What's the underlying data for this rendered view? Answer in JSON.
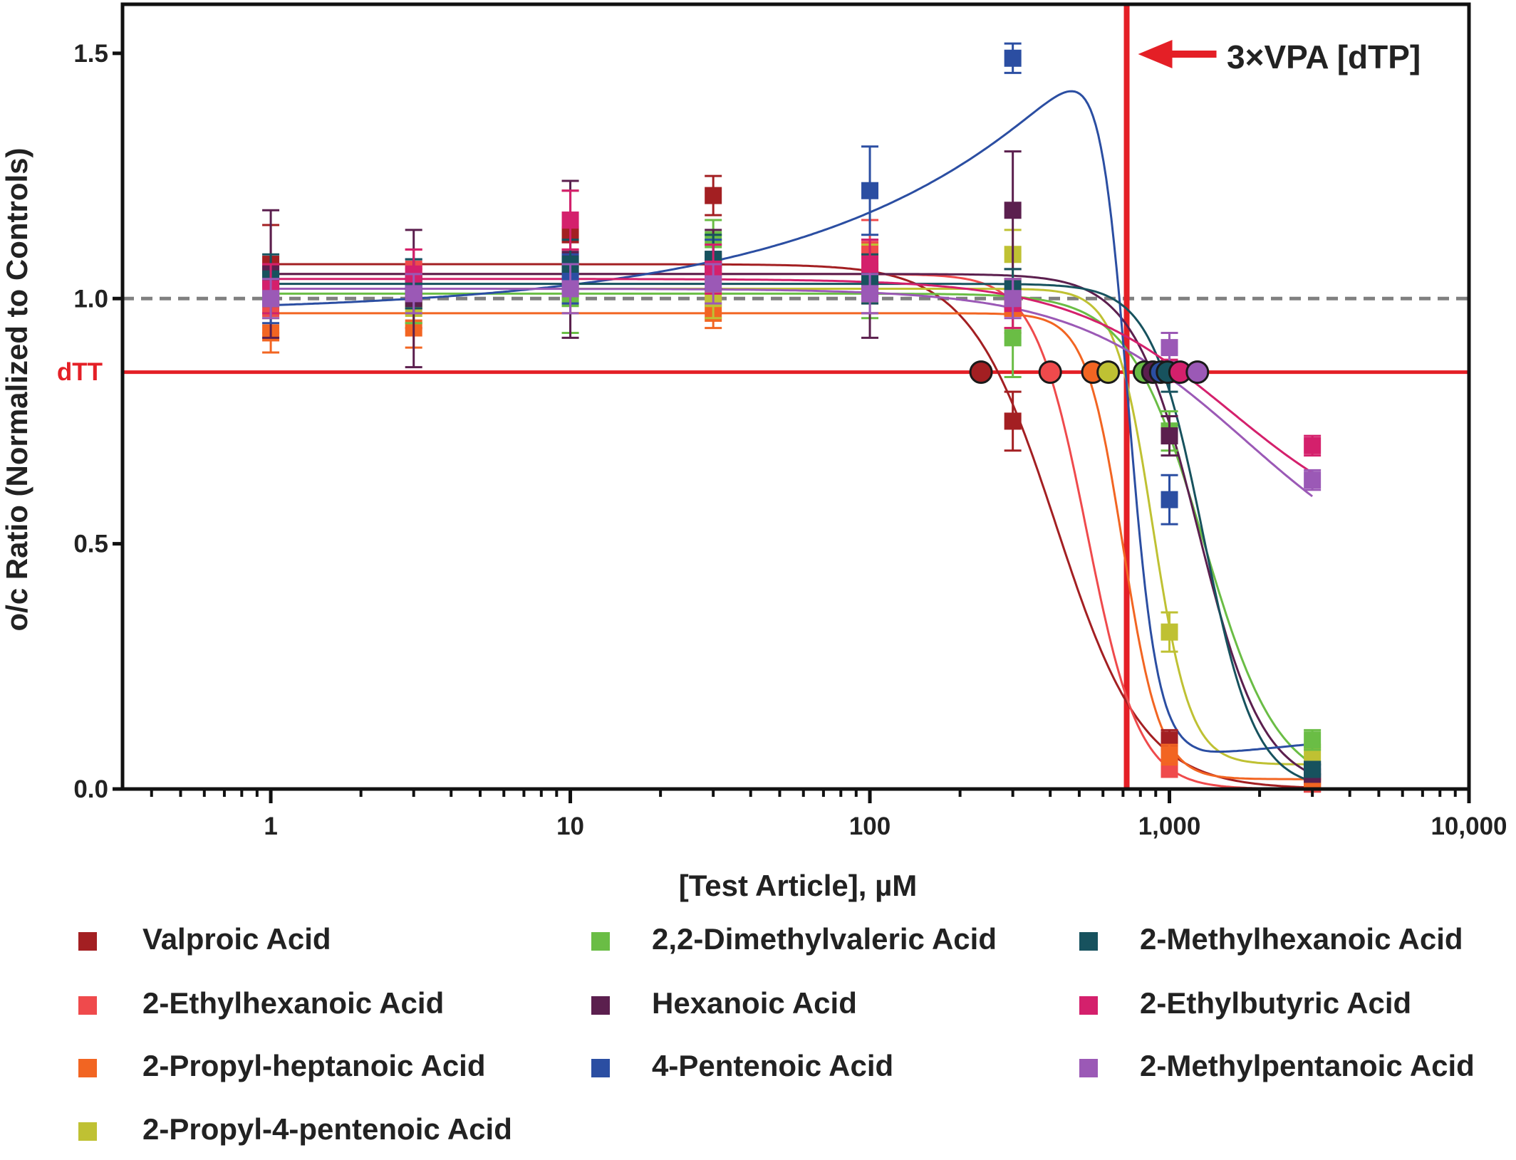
{
  "chart_data": {
    "type": "scatter",
    "title": "",
    "xlabel": "[Test Article], µM",
    "ylabel": "o/c Ratio (Normalized to Controls)",
    "x_scale": "log",
    "xlim": [
      0.32,
      10000
    ],
    "ylim": [
      0,
      1.6
    ],
    "x_tick_labels": [
      "1",
      "10",
      "100",
      "1,000",
      "10,000"
    ],
    "y_tick_labels": [
      "0.0",
      "0.5",
      "1.0",
      "1.5"
    ],
    "reference_lines": {
      "control_level": 1.0,
      "dTT_label": "dTT",
      "dTT_value": 0.85,
      "vpa_label": "3×VPA [dTP]",
      "vpa_concentration": 720
    },
    "legend_position": "bottom",
    "series": [
      {
        "name": "Valproic Acid",
        "color": "#a31f22",
        "x": [
          1,
          3,
          10,
          30,
          100,
          300,
          1000,
          3000
        ],
        "y": [
          1.07,
          1.0,
          1.13,
          1.21,
          1.02,
          0.75,
          0.1,
          0.01
        ],
        "err": [
          0.08,
          0.06,
          0.09,
          0.04,
          0.05,
          0.06,
          0.02,
          0.01
        ],
        "fit": {
          "top": 1.07,
          "bottom": 0.0,
          "ec50": 420,
          "hill": 3.0
        },
        "dtt_crossing": 235
      },
      {
        "name": "2-Ethylhexanoic Acid",
        "color": "#ef4a4c",
        "x": [
          1,
          3,
          10,
          30,
          100,
          300,
          1000,
          3000
        ],
        "y": [
          0.98,
          1.06,
          1.05,
          1.05,
          1.1,
          0.98,
          0.04,
          0.01
        ],
        "err": [
          0.05,
          0.04,
          0.05,
          0.04,
          0.06,
          0.05,
          0.01,
          0.01
        ],
        "fit": {
          "top": 1.05,
          "bottom": 0.0,
          "ec50": 530,
          "hill": 5.0
        },
        "dtt_crossing": 400
      },
      {
        "name": "2-Propyl-heptanoic Acid",
        "color": "#f26522",
        "x": [
          1,
          3,
          10,
          30,
          100,
          300,
          1000,
          3000
        ],
        "y": [
          0.93,
          0.94,
          1.02,
          0.97,
          1.05,
          0.98,
          0.07,
          0.02
        ],
        "err": [
          0.04,
          0.04,
          0.05,
          0.03,
          0.06,
          0.04,
          0.02,
          0.01
        ],
        "fit": {
          "top": 0.97,
          "bottom": 0.02,
          "ec50": 700,
          "hill": 7.0
        },
        "dtt_crossing": 555
      },
      {
        "name": "2-Propyl-4-pentenoic Acid",
        "color": "#bfc133",
        "x": [
          1,
          3,
          10,
          30,
          100,
          300,
          1000,
          3000
        ],
        "y": [
          1.0,
          0.98,
          1.02,
          1.0,
          1.06,
          1.09,
          0.32,
          0.07
        ],
        "err": [
          0.04,
          0.03,
          0.05,
          0.04,
          0.05,
          0.05,
          0.04,
          0.02
        ],
        "fit": {
          "top": 1.02,
          "bottom": 0.05,
          "ec50": 880,
          "hill": 7.0
        },
        "dtt_crossing": 625
      },
      {
        "name": "2,2-Dimethylvaleric Acid",
        "color": "#6abd45",
        "x": [
          1,
          3,
          10,
          30,
          100,
          300,
          1000,
          3000
        ],
        "y": [
          1.01,
          1.0,
          1.0,
          1.12,
          1.01,
          0.92,
          0.73,
          0.1
        ],
        "err": [
          0.04,
          0.05,
          0.07,
          0.04,
          0.05,
          0.08,
          0.04,
          0.02
        ],
        "fit": {
          "top": 1.01,
          "bottom": 0.0,
          "ec50": 1300,
          "hill": 3.5
        },
        "dtt_crossing": 825
      },
      {
        "name": "Hexanoic Acid",
        "color": "#5b1f4e",
        "x": [
          1,
          3,
          10,
          30,
          100,
          300,
          1000,
          3000
        ],
        "y": [
          1.05,
          1.0,
          1.08,
          1.08,
          1.02,
          1.18,
          0.72,
          0.03
        ],
        "err": [
          0.13,
          0.14,
          0.16,
          0.06,
          0.1,
          0.12,
          0.04,
          0.01
        ],
        "fit": {
          "top": 1.05,
          "bottom": 0.0,
          "ec50": 1250,
          "hill": 4.0
        },
        "dtt_crossing": 880
      },
      {
        "name": "4-Pentenoic Acid",
        "color": "#2b4ea2",
        "x": [
          1,
          3,
          10,
          30,
          100,
          300,
          1000,
          3000
        ],
        "y": [
          1.0,
          1.03,
          1.04,
          1.07,
          1.22,
          1.49,
          0.59,
          0.04
        ],
        "err": [
          0.05,
          0.05,
          0.05,
          0.05,
          0.09,
          0.03,
          0.05,
          0.01
        ],
        "fit": {
          "type": "biphasic"
        },
        "dtt_crossing": 935
      },
      {
        "name": "2-Methylhexanoic Acid",
        "color": "#17525e",
        "x": [
          1,
          3,
          10,
          30,
          100,
          300,
          1000,
          3000
        ],
        "y": [
          1.04,
          1.03,
          1.07,
          1.08,
          1.04,
          1.02,
          0.85,
          0.04
        ],
        "err": [
          0.05,
          0.05,
          0.05,
          0.05,
          0.05,
          0.04,
          0.04,
          0.01
        ],
        "fit": {
          "top": 1.03,
          "bottom": 0.0,
          "ec50": 1300,
          "hill": 5.0
        },
        "dtt_crossing": 985
      },
      {
        "name": "2-Ethylbutyric Acid",
        "color": "#d4206c",
        "x": [
          1,
          3,
          10,
          30,
          100,
          300,
          1000,
          3000
        ],
        "y": [
          1.02,
          1.05,
          1.16,
          1.06,
          1.07,
          0.99,
          0.86,
          0.7
        ],
        "err": [
          0.05,
          0.05,
          0.06,
          0.05,
          0.05,
          0.05,
          0.03,
          0.02
        ],
        "fit": {
          "top": 1.04,
          "bottom": 0.5,
          "ec50": 1600,
          "hill": 1.6
        },
        "dtt_crossing": 1085
      },
      {
        "name": "2-Methylpentanoic Acid",
        "color": "#9b59b6",
        "x": [
          1,
          3,
          10,
          30,
          100,
          300,
          1000,
          3000
        ],
        "y": [
          1.0,
          1.01,
          1.02,
          1.03,
          1.01,
          1.0,
          0.9,
          0.63
        ],
        "err": [
          0.04,
          0.04,
          0.05,
          0.04,
          0.04,
          0.04,
          0.03,
          0.02
        ],
        "fit": {
          "top": 1.02,
          "bottom": 0.4,
          "ec50": 1800,
          "hill": 1.5
        },
        "dtt_crossing": 1240
      }
    ]
  }
}
